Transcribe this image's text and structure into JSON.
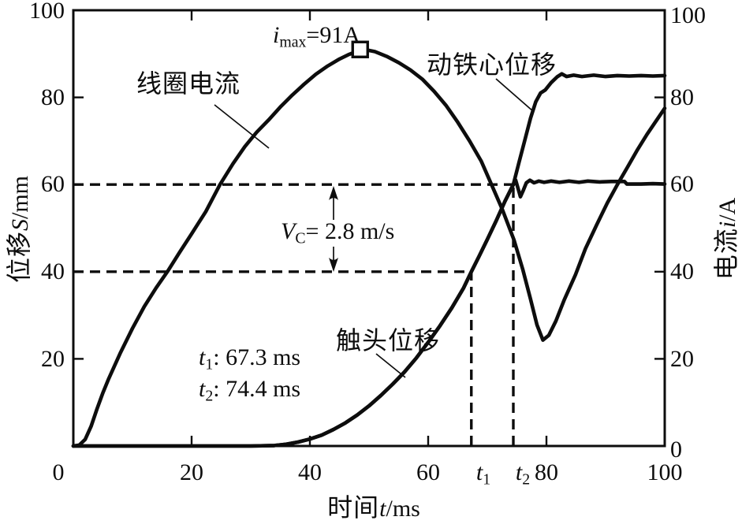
{
  "axes": {
    "left": {
      "title_cn": "位移",
      "title_sym": "S",
      "title_unit": "/mm",
      "ticks": [
        "100",
        "80",
        "60",
        "40",
        "20"
      ]
    },
    "right": {
      "title_cn": "电流",
      "title_sym": "i",
      "title_unit": "/A",
      "ticks": [
        "100",
        "80",
        "60",
        "40",
        "20",
        "0"
      ]
    },
    "bottom": {
      "title_cn": "时间",
      "title_sym": "t",
      "title_unit": "/ms",
      "ticks": [
        "0",
        "20",
        "40",
        "60",
        "80",
        "100"
      ],
      "t1_var": "t",
      "t1_sub": "1",
      "t2_var": "t",
      "t2_sub": "2"
    }
  },
  "annotations": {
    "imax": {
      "var": "i",
      "sub": "max",
      "rest": "=91A"
    },
    "vc": {
      "var": "V",
      "sub": "C",
      "rest": "= 2.8 m/s"
    },
    "t1_note": {
      "var": "t",
      "sub": "1",
      "rest": ": 67.3 ms"
    },
    "t2_note": {
      "var": "t",
      "sub": "2",
      "rest": ": 74.4 ms"
    },
    "coil_label": "线圈电流",
    "core_label": "动铁心位移",
    "contact_label": "触头位移"
  },
  "colors": {
    "ink": "#0d0d0d",
    "background": "#ffffff"
  },
  "chart_data": {
    "type": "line",
    "xlabel": "时间t/ms",
    "ylabel_left": "位移S/mm",
    "ylabel_right": "电流i/A",
    "xlim": [
      0,
      100
    ],
    "ylim_left": [
      0,
      100
    ],
    "ylim_right": [
      0,
      100
    ],
    "grid": false,
    "x_ticks": [
      0,
      20,
      40,
      60,
      80,
      100
    ],
    "tick_values_inner": [
      20,
      40,
      60,
      80
    ],
    "key_values": {
      "i_max_A": 91,
      "V_C_m_per_s": 2.8,
      "t1_ms": 67.3,
      "t2_ms": 74.4,
      "core_final_mm": 85,
      "contact_final_mm": 60
    },
    "series": [
      {
        "id": "coil-current",
        "name": "线圈电流",
        "axis": "right",
        "unit": "A",
        "points": [
          [
            0,
            0
          ],
          [
            1,
            0.2
          ],
          [
            2,
            1.5
          ],
          [
            3,
            4.5
          ],
          [
            4,
            8.5
          ],
          [
            5,
            12.2
          ],
          [
            6,
            15.5
          ],
          [
            8,
            21.5
          ],
          [
            10,
            27
          ],
          [
            12,
            32
          ],
          [
            14,
            36.3
          ],
          [
            16,
            40.2
          ],
          [
            18,
            44.5
          ],
          [
            20,
            48.7
          ],
          [
            22.4,
            53.8
          ],
          [
            24.8,
            60
          ],
          [
            27,
            64.8
          ],
          [
            29,
            68.7
          ],
          [
            31,
            72
          ],
          [
            33,
            74.8
          ],
          [
            35,
            77.8
          ],
          [
            37,
            80.5
          ],
          [
            39,
            83
          ],
          [
            41,
            85.3
          ],
          [
            43,
            87.2
          ],
          [
            45,
            88.8
          ],
          [
            46.5,
            89.8
          ],
          [
            48,
            90.6
          ],
          [
            49.5,
            90.9
          ],
          [
            51,
            90.5
          ],
          [
            53,
            89.4
          ],
          [
            55,
            88
          ],
          [
            57,
            86.3
          ],
          [
            59,
            84.2
          ],
          [
            61,
            81.4
          ],
          [
            63,
            78.2
          ],
          [
            65,
            74.3
          ],
          [
            67,
            70
          ],
          [
            69,
            65.3
          ],
          [
            70.7,
            60
          ],
          [
            72.5,
            54.4
          ],
          [
            74.5,
            47.3
          ],
          [
            76,
            40.5
          ],
          [
            77.3,
            33.7
          ],
          [
            78.4,
            27.8
          ],
          [
            79.4,
            24.3
          ],
          [
            80.4,
            25.4
          ],
          [
            81.6,
            28.7
          ],
          [
            83,
            33.5
          ],
          [
            84.9,
            39.3
          ],
          [
            86.6,
            45.3
          ],
          [
            88.5,
            50.8
          ],
          [
            90.3,
            55.8
          ],
          [
            92,
            60
          ],
          [
            93.7,
            64
          ],
          [
            95.3,
            67.8
          ],
          [
            97,
            71.5
          ],
          [
            98.4,
            74.3
          ],
          [
            100,
            77.5
          ]
        ]
      },
      {
        "id": "core-displacement",
        "name": "动铁心位移",
        "axis": "left",
        "unit": "mm",
        "points": [
          [
            0,
            0
          ],
          [
            10,
            0
          ],
          [
            20,
            0
          ],
          [
            30,
            0
          ],
          [
            34,
            0.1
          ],
          [
            36,
            0.4
          ],
          [
            38,
            0.9
          ],
          [
            40,
            1.6
          ],
          [
            42,
            2.5
          ],
          [
            44,
            3.8
          ],
          [
            46,
            5.3
          ],
          [
            48,
            7.1
          ],
          [
            50,
            9.2
          ],
          [
            52,
            11.6
          ],
          [
            54,
            14.2
          ],
          [
            56,
            17
          ],
          [
            58,
            20.2
          ],
          [
            60,
            23.8
          ],
          [
            62,
            27.6
          ],
          [
            64,
            31.7
          ],
          [
            66,
            36.3
          ],
          [
            67.3,
            40
          ],
          [
            68.6,
            43.5
          ],
          [
            70,
            47.4
          ],
          [
            71.5,
            51.7
          ],
          [
            73,
            56.2
          ],
          [
            74.4,
            60
          ],
          [
            75.4,
            65.3
          ],
          [
            76.3,
            70
          ],
          [
            77.3,
            75.2
          ],
          [
            78.2,
            79
          ],
          [
            79,
            81
          ],
          [
            79.8,
            81.7
          ],
          [
            80.8,
            83.4
          ],
          [
            81.8,
            84.7
          ],
          [
            82.6,
            85.4
          ],
          [
            83.4,
            84.8
          ],
          [
            84.6,
            85.1
          ],
          [
            86,
            84.8
          ],
          [
            88,
            85.1
          ],
          [
            90,
            84.8
          ],
          [
            92,
            85
          ],
          [
            94,
            84.9
          ],
          [
            96,
            85
          ],
          [
            98,
            84.9
          ],
          [
            100,
            85
          ]
        ]
      },
      {
        "id": "contact-displacement",
        "name": "触头位移",
        "axis": "left",
        "unit": "mm",
        "points": [
          [
            0,
            0
          ],
          [
            10,
            0
          ],
          [
            20,
            0
          ],
          [
            30,
            0
          ],
          [
            34,
            0.1
          ],
          [
            36,
            0.4
          ],
          [
            38,
            0.9
          ],
          [
            40,
            1.6
          ],
          [
            42,
            2.5
          ],
          [
            44,
            3.8
          ],
          [
            46,
            5.3
          ],
          [
            48,
            7.1
          ],
          [
            50,
            9.2
          ],
          [
            52,
            11.6
          ],
          [
            54,
            14.2
          ],
          [
            56,
            17
          ],
          [
            58,
            20.2
          ],
          [
            60,
            23.8
          ],
          [
            62,
            27.6
          ],
          [
            64,
            31.7
          ],
          [
            66,
            36.3
          ],
          [
            67.3,
            40
          ],
          [
            68.6,
            43.5
          ],
          [
            70,
            47.4
          ],
          [
            71.5,
            51.7
          ],
          [
            73,
            56.2
          ],
          [
            74.4,
            60
          ],
          [
            74.8,
            61
          ],
          [
            75.1,
            59.6
          ],
          [
            75.6,
            57.2
          ],
          [
            76.1,
            58.7
          ],
          [
            76.6,
            60.4
          ],
          [
            77.2,
            61
          ],
          [
            77.9,
            60.4
          ],
          [
            78.7,
            60.8
          ],
          [
            79.6,
            60.5
          ],
          [
            80.8,
            60.8
          ],
          [
            82.2,
            60.5
          ],
          [
            83.8,
            60.8
          ],
          [
            85.5,
            60.5
          ],
          [
            87,
            60.8
          ],
          [
            89,
            60.6
          ],
          [
            91,
            60.7
          ],
          [
            93.2,
            60.7
          ],
          [
            93.6,
            60.1
          ],
          [
            96,
            60.1
          ],
          [
            98,
            60.2
          ],
          [
            100,
            60.1
          ]
        ]
      }
    ],
    "guides": [
      {
        "id": "s60",
        "axis": "y",
        "value": 60,
        "from": 0,
        "to": 74.2
      },
      {
        "id": "s40",
        "axis": "y",
        "value": 40,
        "from": 0,
        "to": 67.2
      },
      {
        "id": "t1",
        "axis": "x",
        "value": 67.3,
        "from": 0,
        "to": 39.8
      },
      {
        "id": "t2",
        "axis": "x",
        "value": 74.4,
        "from": 0,
        "to": 60
      }
    ],
    "marker": {
      "id": "imax",
      "t": 48.5,
      "value": 91
    }
  }
}
